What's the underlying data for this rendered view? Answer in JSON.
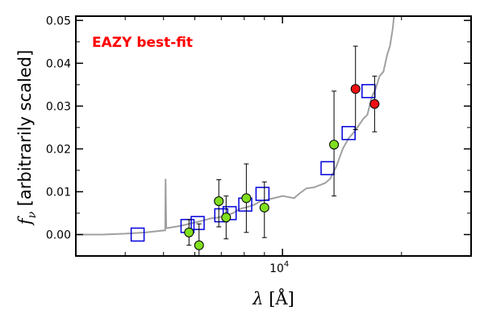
{
  "chart_data": {
    "type": "scatter",
    "annotation": "EAZY best-fit",
    "annotation_color": "#ff0000",
    "xlabel": "λ [Å]",
    "ylabel": "f_ν [arbitrarily scaled]",
    "ylabel_symbol": "f",
    "ylabel_sub": "ν",
    "ylabel_rest": " [arbitrarily scaled]",
    "xlabel_symbol": "λ",
    "xlabel_rest": " [Å]",
    "x_scale": "log",
    "xlim": [
      3000,
      30000
    ],
    "ylim": [
      -0.005,
      0.051
    ],
    "x_tick_labels": [
      {
        "value": 10000,
        "base": "10",
        "exp": "4"
      }
    ],
    "y_ticks": [
      0.0,
      0.01,
      0.02,
      0.03,
      0.04,
      0.05
    ],
    "y_tick_labels": [
      "0.00",
      "0.01",
      "0.02",
      "0.03",
      "0.04",
      "0.05"
    ],
    "grid": false,
    "series": [
      {
        "kind": "template",
        "color": "#a0a0a0",
        "x": [
          3000,
          3500,
          4000,
          4500,
          5050,
          5060,
          5080,
          5100,
          5500,
          5800,
          6000,
          6300,
          6600,
          6900,
          7200,
          7500,
          7800,
          8200,
          8500,
          8800,
          9200,
          9600,
          10000,
          10300,
          10700,
          11000,
          11500,
          12000,
          12400,
          12800,
          13200,
          13700,
          14200,
          14700,
          15200,
          15600,
          16000,
          16400,
          16800,
          17200,
          17600,
          18000,
          18400,
          18700,
          19000,
          19200,
          19400
        ],
        "y": [
          0.0,
          0.0,
          0.0002,
          0.0005,
          0.001,
          0.013,
          0.0015,
          0.0015,
          0.002,
          0.0025,
          0.0028,
          0.0033,
          0.0038,
          0.004,
          0.0045,
          0.005,
          0.006,
          0.0065,
          0.007,
          0.0078,
          0.0082,
          0.0086,
          0.009,
          0.0088,
          0.0085,
          0.0095,
          0.0108,
          0.011,
          0.0115,
          0.012,
          0.013,
          0.016,
          0.02,
          0.0225,
          0.024,
          0.0255,
          0.027,
          0.028,
          0.032,
          0.034,
          0.037,
          0.038,
          0.042,
          0.044,
          0.048,
          0.052,
          0.054
        ]
      },
      {
        "kind": "model",
        "marker": "square",
        "color": "#0000dd",
        "x": [
          4300,
          5750,
          6100,
          7000,
          7350,
          8050,
          8900,
          13000,
          14700,
          16500
        ],
        "y": [
          0.0,
          0.002,
          0.0027,
          0.0045,
          0.005,
          0.007,
          0.0095,
          0.0155,
          0.0237,
          0.0335
        ]
      },
      {
        "kind": "photometry",
        "marker": "circle",
        "color": "#7fdf1f",
        "x": [
          5800,
          6150,
          6900,
          7200,
          8100,
          9000,
          13500
        ],
        "y": [
          0.0005,
          -0.0025,
          0.0078,
          0.004,
          0.0085,
          0.0063,
          0.021
        ],
        "yerr_low": [
          0.003,
          0.005,
          0.006,
          0.005,
          0.008,
          0.007,
          0.012
        ],
        "yerr_high": [
          0.003,
          0.005,
          0.005,
          0.005,
          0.008,
          0.006,
          0.0125
        ]
      },
      {
        "kind": "photometry",
        "marker": "circle",
        "color": "#ee1111",
        "x": [
          15300,
          17100
        ],
        "y": [
          0.034,
          0.0305
        ],
        "yerr_low": [
          0.0095,
          0.0065
        ],
        "yerr_high": [
          0.01,
          0.0065
        ]
      }
    ]
  }
}
